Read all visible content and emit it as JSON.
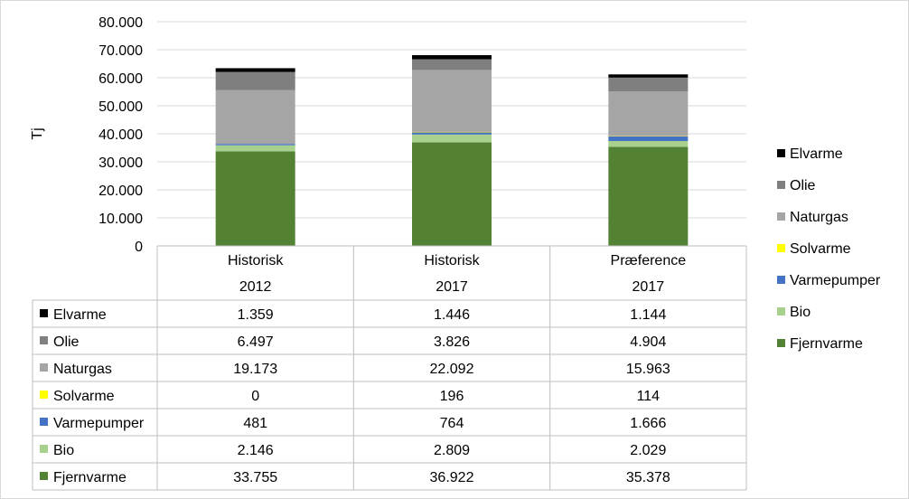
{
  "chart_data": {
    "type": "bar",
    "stacked": true,
    "ylabel": "Tj",
    "ylim": [
      0,
      80000
    ],
    "yticks": [
      "0",
      "10.000",
      "20.000",
      "30.000",
      "40.000",
      "50.000",
      "60.000",
      "70.000",
      "80.000"
    ],
    "categories": [
      {
        "line1": "Historisk",
        "line2": "2012"
      },
      {
        "line1": "Historisk",
        "line2": "2017"
      },
      {
        "line1": "Præference",
        "line2": "2017"
      }
    ],
    "series": [
      {
        "name": "Fjernvarme",
        "color": "#548235",
        "values": [
          33755,
          36922,
          35378
        ],
        "labels": [
          "33.755",
          "36.922",
          "35.378"
        ]
      },
      {
        "name": "Bio",
        "color": "#a9d18e",
        "values": [
          2146,
          2809,
          2029
        ],
        "labels": [
          "2.146",
          "2.809",
          "2.029"
        ]
      },
      {
        "name": "Varmepumper",
        "color": "#4472c4",
        "values": [
          481,
          764,
          1666
        ],
        "labels": [
          "481",
          "764",
          "1.666"
        ]
      },
      {
        "name": "Solvarme",
        "color": "#ffff00",
        "values": [
          0,
          196,
          114
        ],
        "labels": [
          "0",
          "196",
          "114"
        ]
      },
      {
        "name": "Naturgas",
        "color": "#a5a5a5",
        "values": [
          19173,
          22092,
          15963
        ],
        "labels": [
          "19.173",
          "22.092",
          "15.963"
        ]
      },
      {
        "name": "Olie",
        "color": "#7f7f7f",
        "values": [
          6497,
          3826,
          4904
        ],
        "labels": [
          "6.497",
          "3.826",
          "4.904"
        ]
      },
      {
        "name": "Elvarme",
        "color": "#000000",
        "values": [
          1359,
          1446,
          1144
        ],
        "labels": [
          "1.359",
          "1.446",
          "1.144"
        ]
      }
    ],
    "legend_position": "right",
    "grid": true,
    "data_table": true
  }
}
